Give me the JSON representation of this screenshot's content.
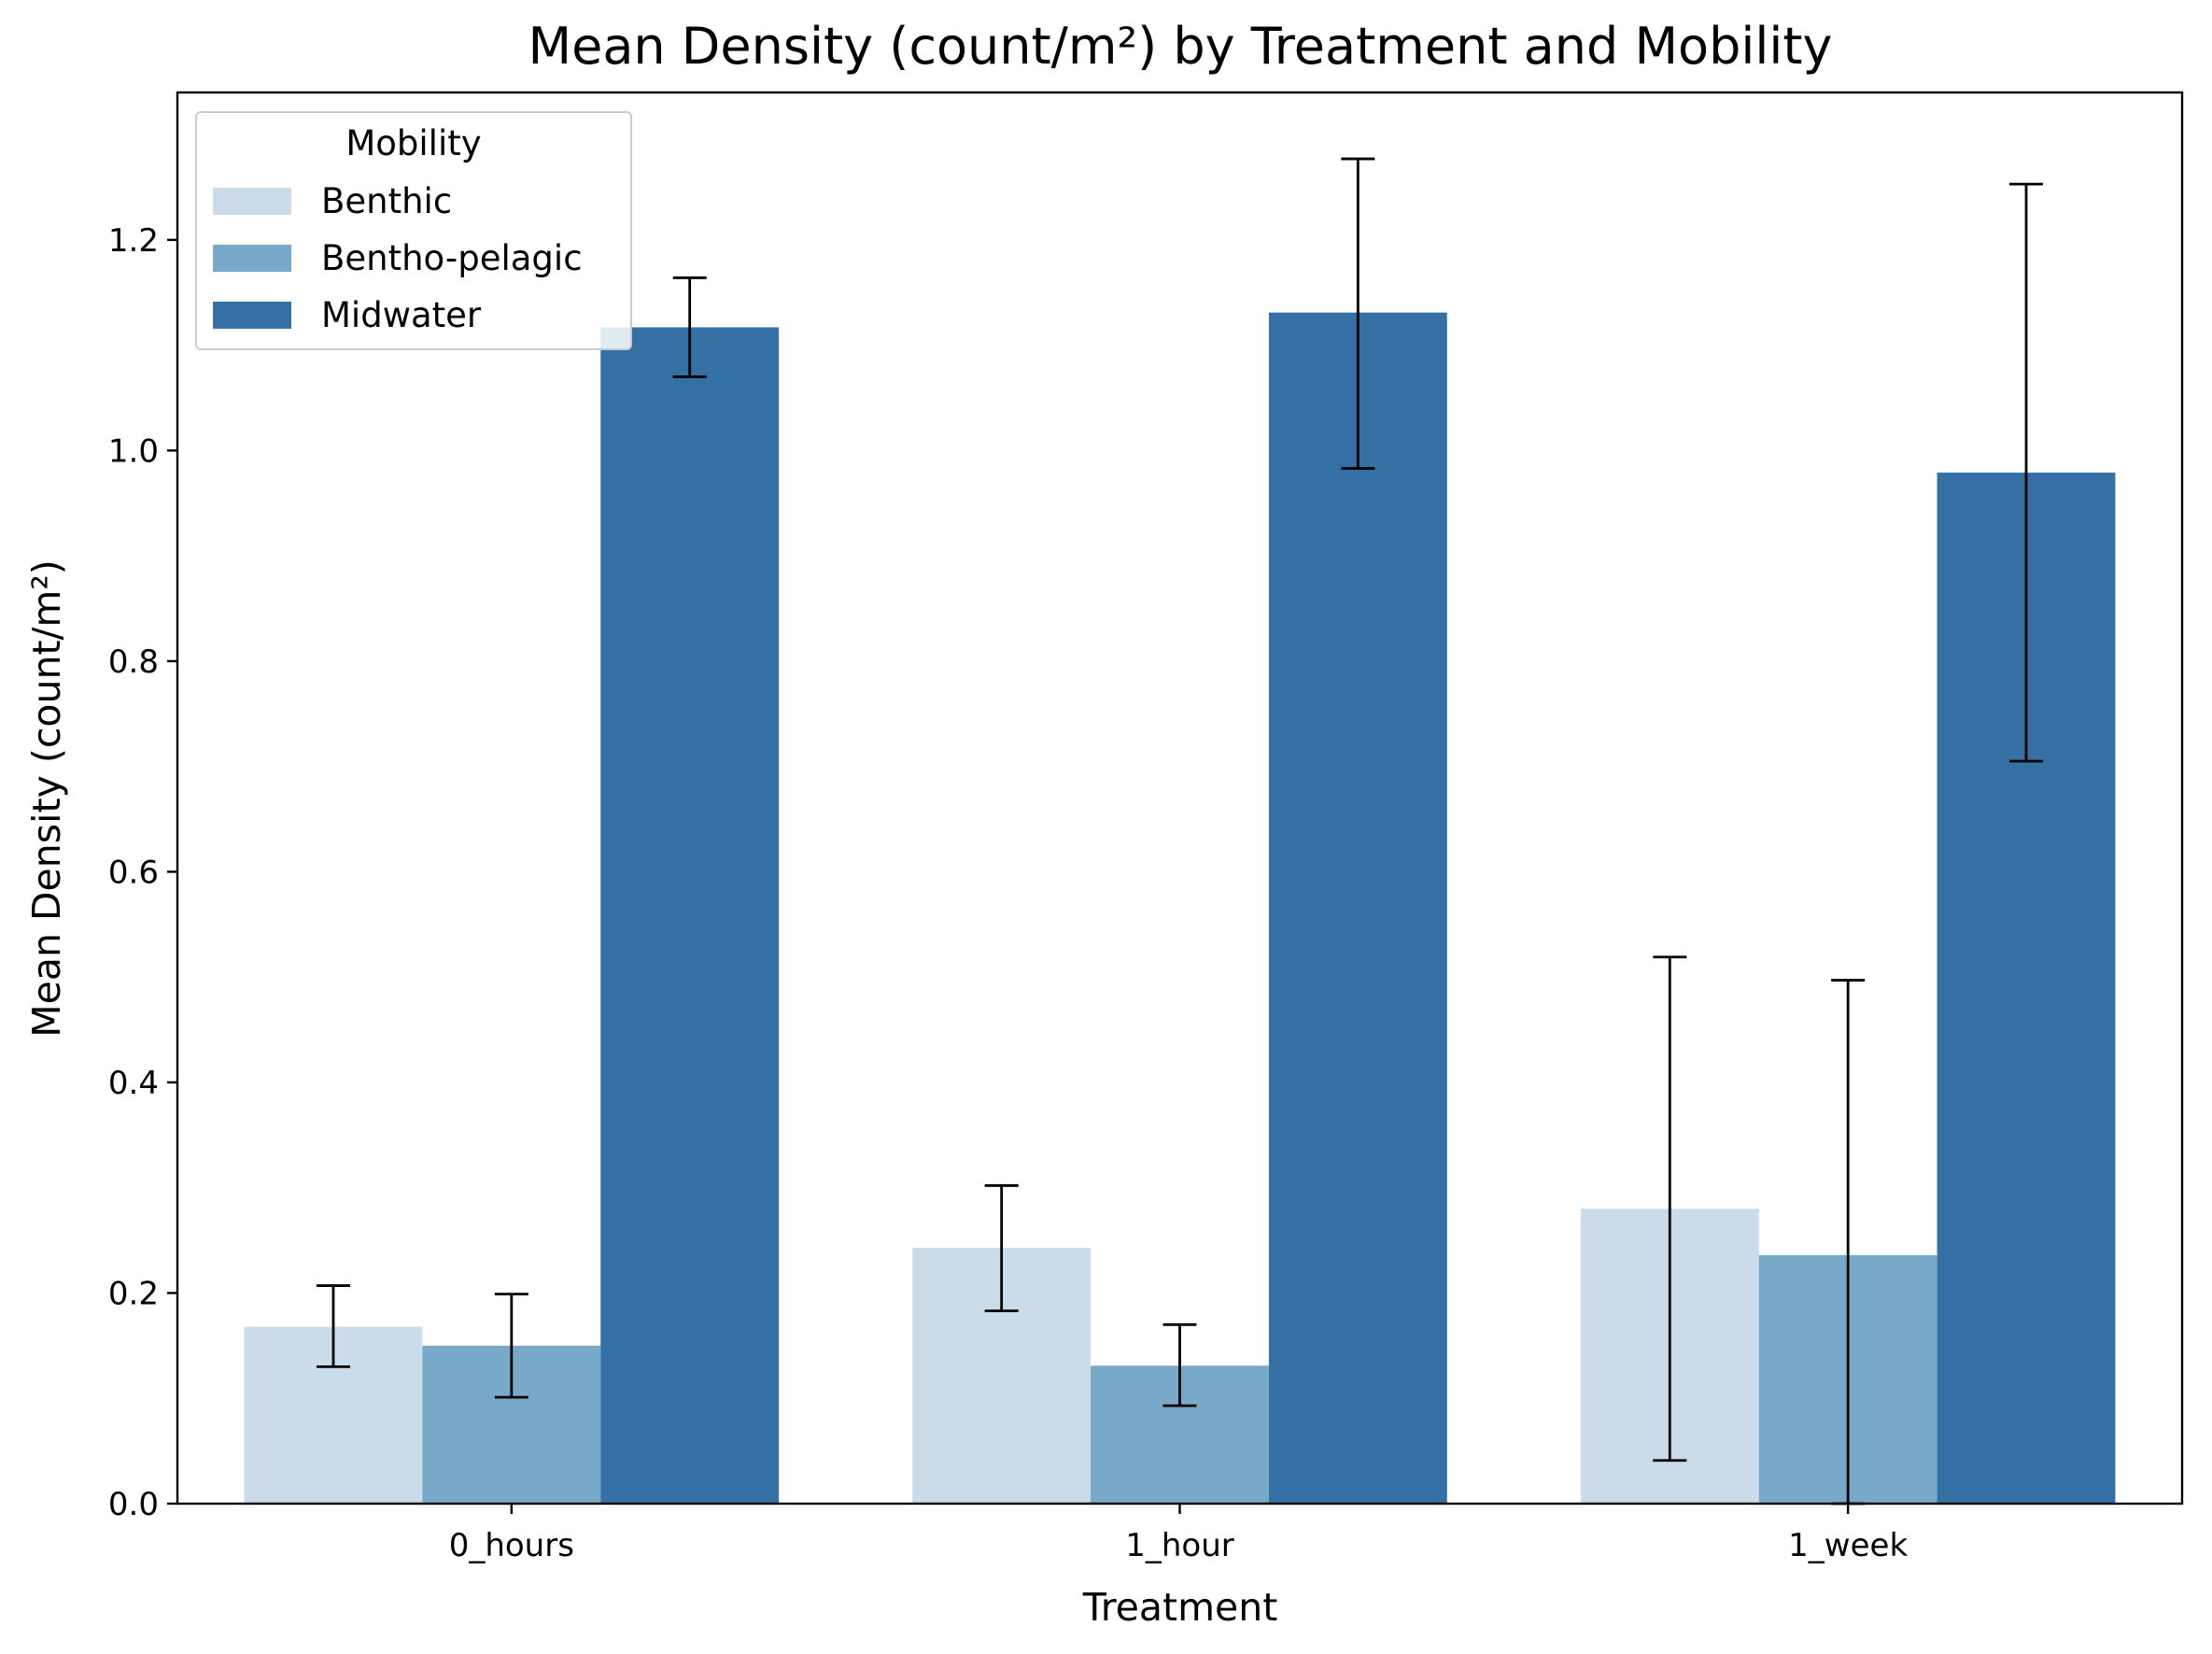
{
  "chart_data": {
    "type": "bar",
    "title": "Mean Density (count/m²) by Treatment and Mobility",
    "xlabel": "Treatment",
    "ylabel": "Mean Density (count/m²)",
    "categories": [
      "0_hours",
      "1_hour",
      "1_week"
    ],
    "ylim": [
      0,
      1.34
    ],
    "yticks": [
      0.0,
      0.2,
      0.4,
      0.6,
      0.8,
      1.0,
      1.2
    ],
    "ytick_labels": [
      "0.0",
      "0.2",
      "0.4",
      "0.6",
      "0.8",
      "1.0",
      "1.2"
    ],
    "grid": false,
    "legend": {
      "title": "Mobility",
      "placement": "top-left"
    },
    "series": [
      {
        "name": "Benthic",
        "color": "#cadbea",
        "values": [
          0.168,
          0.243,
          0.28
        ],
        "err_low": [
          0.13,
          0.183,
          0.041
        ],
        "err_high": [
          0.207,
          0.302,
          0.519
        ]
      },
      {
        "name": "Bentho-pelagic",
        "color": "#78a9c9",
        "values": [
          0.15,
          0.131,
          0.236
        ],
        "err_low": [
          0.101,
          0.093,
          0.0
        ],
        "err_high": [
          0.199,
          0.17,
          0.497
        ]
      },
      {
        "name": "Midwater",
        "color": "#3470a3",
        "values": [
          1.117,
          1.131,
          0.979
        ],
        "err_low": [
          1.07,
          0.983,
          0.705
        ],
        "err_high": [
          1.164,
          1.277,
          1.253
        ]
      }
    ]
  }
}
